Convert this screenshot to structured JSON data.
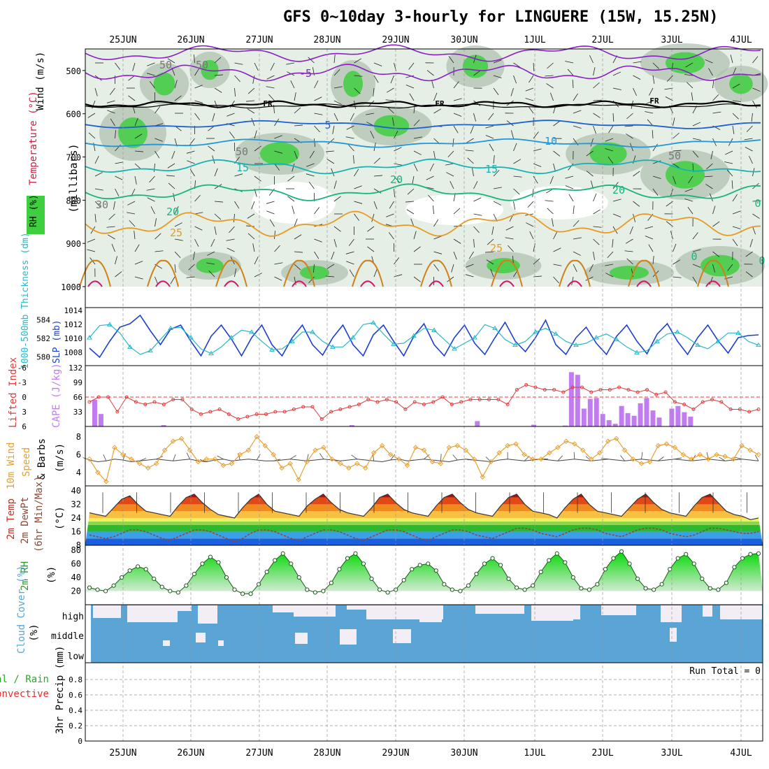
{
  "title": "GFS 0~10day 3-hourly for LINGUERE (15W, 15.25N)",
  "colors": {
    "grid": "#999999",
    "slp": "#1f3fd0",
    "thick": "#27b9c8",
    "li": "#e03c3c",
    "cape": "#c07cf0",
    "wind": "#e8a030",
    "barb": "#444444",
    "rhfill": "#3ecf3e",
    "cloud": "#5aa5d6",
    "cloudClear": "#f3eef5",
    "dewpt": "#8a4a3a"
  },
  "chart_data": {
    "type": "meteogram",
    "dates": [
      "25JUN",
      "26JUN",
      "27JUN",
      "28JUN",
      "29JUN",
      "30JUN",
      "1JUL",
      "2JUL",
      "3JUL",
      "4JUL"
    ],
    "upper_air": {
      "ylabel": "(millibars)",
      "legend": [
        "Wind (m/s)",
        "Temperature (°C)",
        "RH (%)"
      ],
      "ylim": [
        1000,
        450
      ],
      "yticks": [
        "500",
        "600",
        "700",
        "800",
        "900",
        "1000"
      ],
      "contour_labels": [
        "-5",
        "FR",
        "FR",
        "FR",
        "5",
        "10",
        "15",
        "15",
        "20",
        "20",
        "20",
        "25",
        "25",
        "50",
        "50",
        "50",
        "50",
        "30",
        "0",
        "0",
        "0"
      ]
    },
    "thickness_slp": {
      "ylabel_left": "1000-500mb Thickness (dm)",
      "ylabel_right": "SLP (mb)",
      "yticks_left": [
        "584",
        "582",
        "580"
      ],
      "yticks_right": [
        "1014",
        "1012",
        "1010",
        "1008"
      ],
      "slp_series": [
        1008.5,
        1007.2,
        1009.5,
        1011.5,
        1012.0,
        1013.2,
        1011.0,
        1009.0,
        1011.2,
        1011.8,
        1009.5,
        1007.4,
        1010.2,
        1011.8,
        1009.8,
        1007.4,
        1010.0,
        1011.8,
        1009.0,
        1007.4,
        1010.0,
        1011.8,
        1009.0,
        1007.5,
        1010.0,
        1011.8,
        1009.0,
        1007.4,
        1010.4,
        1011.8,
        1009.5,
        1007.4,
        1010.2,
        1012.0,
        1009.0,
        1007.4,
        1010.0,
        1011.8,
        1009.2,
        1007.6,
        1010.0,
        1012.2,
        1009.5,
        1008.0,
        1010.0,
        1012.5,
        1009.0,
        1007.6,
        1010.0,
        1011.5,
        1009.2,
        1007.6,
        1010.2,
        1011.8,
        1009.5,
        1007.7,
        1010.5,
        1012.0,
        1009.5,
        1007.6,
        1010.0,
        1011.8,
        1009.6,
        1007.8,
        1010.0,
        1010.3,
        1010.4
      ],
      "thickness_series": [
        582.0,
        583.3,
        583.4,
        582.5,
        581.0,
        580.2,
        580.6,
        581.8,
        583.0,
        583.1,
        582.0,
        580.8,
        580.3,
        581.0,
        582.0,
        582.8,
        582.6,
        581.6,
        580.7,
        580.8,
        581.6,
        582.6,
        582.6,
        581.6,
        581.0,
        581.0,
        582.0,
        583.4,
        583.6,
        582.4,
        581.3,
        581.4,
        582.2,
        583.0,
        582.8,
        581.8,
        580.8,
        581.4,
        582.0,
        583.4,
        583.0,
        581.8,
        581.2,
        581.6,
        582.6,
        583.0,
        582.4,
        581.6,
        581.2,
        581.4,
        582.0,
        582.4,
        581.8,
        581.0,
        580.4,
        580.6,
        581.6,
        582.4,
        582.6,
        582.0,
        581.2,
        580.8,
        581.6,
        582.5,
        582.5,
        581.6,
        581.2
      ]
    },
    "li_cape": {
      "ylabel_left": "Lifted Index",
      "ylabel_right": "CAPE (J/kg)",
      "yticks_left": [
        "-6",
        "-3",
        "0",
        "3",
        "6"
      ],
      "yticks_right": [
        "132",
        "99",
        "66",
        "33"
      ],
      "li_series": [
        1.0,
        0.0,
        0.0,
        3.0,
        0.0,
        1.0,
        1.5,
        1.0,
        1.5,
        0.5,
        0.5,
        2.5,
        3.5,
        3.0,
        2.5,
        3.5,
        4.5,
        4.0,
        3.5,
        3.5,
        3.0,
        3.0,
        2.5,
        2.0,
        2.0,
        4.5,
        3.0,
        2.5,
        2.0,
        1.5,
        0.5,
        1.0,
        0.5,
        1.0,
        2.5,
        1.0,
        1.5,
        1.0,
        0.0,
        1.5,
        1.0,
        0.5,
        0.5,
        0.5,
        0.5,
        1.5,
        -1.5,
        -2.5,
        -2.0,
        -1.5,
        -1.5,
        -1.0,
        -2.0,
        -2.0,
        -1.0,
        -1.5,
        -1.5,
        -2.0,
        -1.5,
        -1.0,
        -1.5,
        -0.5,
        -1.0,
        1.0,
        1.5,
        2.5,
        1.0,
        0.5,
        1.0,
        2.5,
        2.5,
        3.0,
        2.5
      ],
      "cape_series": [
        0,
        60,
        28,
        0,
        0,
        0,
        0,
        0,
        0,
        0,
        0,
        0,
        3,
        0,
        0,
        0,
        0,
        0,
        0,
        0,
        0,
        0,
        0,
        0,
        0,
        0,
        0,
        0,
        0,
        0,
        0,
        0,
        0,
        0,
        0,
        0,
        0,
        0,
        0,
        0,
        0,
        0,
        3,
        0,
        0,
        0,
        0,
        0,
        0,
        0,
        0,
        0,
        0,
        0,
        0,
        0,
        0,
        0,
        0,
        0,
        0,
        0,
        12,
        0,
        0,
        0,
        0,
        0,
        0,
        0,
        0,
        4,
        0,
        0,
        0,
        0,
        2,
        122,
        116,
        40,
        62,
        64,
        28,
        14,
        6,
        46,
        30,
        24,
        52,
        64,
        36,
        20,
        0,
        40,
        46,
        32,
        22,
        0,
        0,
        0,
        0,
        0,
        0,
        0,
        0,
        0,
        0,
        0
      ]
    },
    "wind10m": {
      "ylabel": "10m Wind Speed & Barbs (m/s)",
      "yticks": [
        "8",
        "6",
        "4"
      ],
      "speed_series": [
        5.5,
        4.0,
        3.0,
        6.8,
        6.0,
        5.5,
        5.0,
        4.5,
        5.0,
        6.5,
        7.5,
        7.8,
        6.5,
        5.2,
        5.5,
        5.5,
        4.8,
        5.0,
        6.0,
        6.5,
        8.0,
        7.0,
        6.0,
        4.5,
        5.0,
        3.2,
        5.2,
        6.5,
        6.8,
        5.5,
        5.0,
        4.5,
        5.0,
        4.5,
        6.2,
        7.0,
        6.0,
        5.5,
        4.8,
        6.8,
        6.5,
        5.2,
        5.0,
        6.8,
        7.0,
        6.5,
        5.5,
        3.5,
        5.2,
        6.2,
        7.0,
        7.2,
        6.0,
        5.5,
        5.5,
        6.2,
        6.8,
        7.5,
        7.2,
        6.5,
        5.5,
        6.2,
        7.5,
        7.8,
        6.5,
        5.5,
        5.0,
        5.2,
        7.0,
        7.2,
        6.8,
        6.0,
        5.5,
        6.0,
        5.5,
        6.0,
        5.8,
        5.5,
        7.0,
        6.5,
        6.0
      ],
      "mean_series": [
        5.4,
        5.2,
        5.3,
        5.5,
        5.4,
        5.2,
        5.3,
        5.4,
        5.5,
        5.4,
        5.3,
        5.4,
        5.5,
        5.3,
        5.2,
        5.4,
        5.5,
        5.3,
        5.4,
        5.5,
        5.4,
        5.3,
        5.3,
        5.4,
        5.5,
        5.4,
        5.3,
        5.4,
        5.5,
        5.4,
        5.3,
        5.4,
        5.5,
        5.4,
        5.3,
        5.2,
        5.4,
        5.5,
        5.3,
        5.4,
        5.5,
        5.4,
        5.3,
        5.2,
        5.4,
        5.5,
        5.4,
        5.3,
        5.2,
        5.4,
        5.5,
        5.4,
        5.3,
        5.4,
        5.5,
        5.4,
        5.3,
        5.4,
        5.5,
        5.4,
        5.3,
        5.4,
        5.5,
        5.4,
        5.3,
        5.4,
        5.5,
        5.4,
        5.3,
        5.4,
        5.5,
        5.4,
        5.3,
        5.4,
        5.5,
        5.4,
        5.3,
        5.4,
        5.5,
        5.4,
        5.3
      ]
    },
    "temp2m": {
      "ylabel": "2m Temp 2m DewPt (6hr Min/Max) (°C)",
      "yticks": [
        "40",
        "32",
        "24",
        "16",
        "8"
      ],
      "temp_series": [
        27,
        26,
        25,
        30,
        35,
        37,
        32,
        28,
        27,
        26,
        25,
        31,
        36,
        38,
        33,
        29,
        26,
        25,
        24,
        30,
        35,
        38,
        32,
        28,
        27,
        26,
        25,
        31,
        35,
        38,
        33,
        29,
        27,
        26,
        25,
        30,
        36,
        38,
        33,
        29,
        27,
        26,
        25,
        31,
        36,
        38,
        33,
        29,
        27,
        26,
        25,
        31,
        36,
        38,
        32,
        28,
        27,
        26,
        24,
        30,
        35,
        38,
        32,
        28,
        27,
        26,
        25,
        30,
        35,
        38,
        33,
        29,
        27,
        26,
        25,
        31,
        36,
        38,
        33,
        28,
        26,
        25,
        23,
        24
      ],
      "dewpt_series": [
        14,
        13,
        12,
        13,
        15,
        17,
        17,
        16,
        14,
        12,
        11,
        13,
        15,
        17,
        17,
        16,
        14,
        12,
        10,
        12,
        15,
        17,
        17,
        16,
        14,
        12,
        11,
        13,
        15,
        17,
        17,
        16,
        14,
        12,
        11,
        13,
        15,
        17,
        17,
        16,
        14,
        12,
        11,
        13,
        15,
        17,
        17,
        16,
        14,
        13,
        12,
        14,
        16,
        18,
        18,
        17,
        15,
        14,
        13,
        15,
        17,
        18,
        18,
        17,
        15,
        14,
        13,
        15,
        17,
        18,
        18,
        17,
        15,
        14,
        13,
        14,
        16,
        18,
        18,
        17,
        16,
        15,
        15,
        16
      ]
    },
    "rh2m": {
      "ylabel": "2m RH (%)",
      "yticks": [
        "80",
        "60",
        "40",
        "20"
      ],
      "rh_series": [
        25,
        22,
        20,
        28,
        40,
        50,
        56,
        52,
        38,
        26,
        20,
        18,
        28,
        45,
        60,
        70,
        62,
        40,
        22,
        16,
        16,
        30,
        48,
        65,
        75,
        60,
        40,
        22,
        18,
        20,
        32,
        52,
        68,
        75,
        60,
        38,
        22,
        18,
        22,
        36,
        52,
        58,
        60,
        50,
        30,
        22,
        20,
        28,
        45,
        60,
        68,
        58,
        38,
        25,
        22,
        28,
        48,
        65,
        75,
        62,
        40,
        24,
        22,
        30,
        52,
        68,
        78,
        60,
        38,
        24,
        22,
        30,
        52,
        68,
        74,
        60,
        38,
        24,
        22,
        32,
        55,
        68,
        74,
        75
      ]
    },
    "cloud_cover": {
      "ylabel": "Cloud Cover (%)",
      "levels": [
        "high",
        "middle",
        "low"
      ]
    },
    "precip": {
      "ylabel": "3hr Precip (mm)",
      "legend": [
        "Total / Rain",
        "Convective"
      ],
      "yticks": [
        "0.8",
        "0.6",
        "0.4",
        "0.2",
        "0"
      ],
      "run_total": "Run Total = 0",
      "values": []
    }
  }
}
